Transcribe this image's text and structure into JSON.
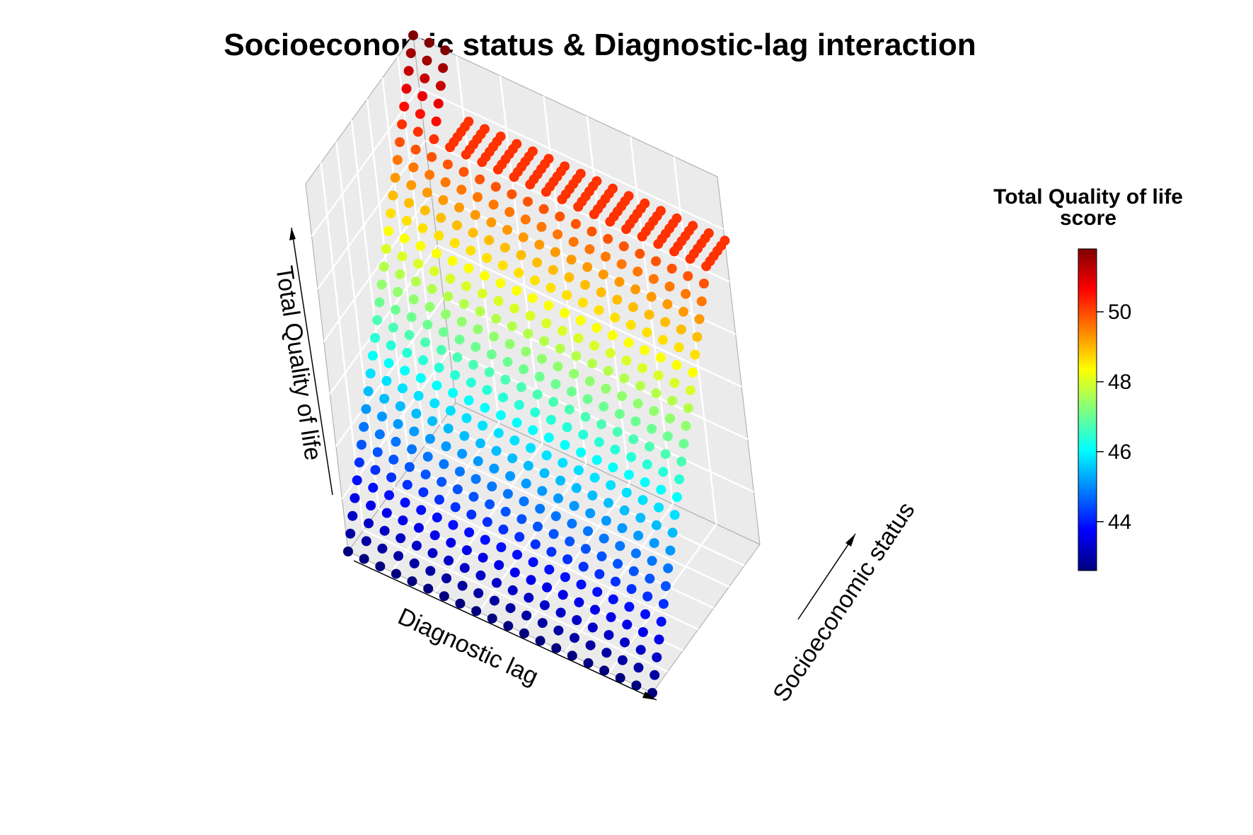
{
  "chart_data": {
    "type": "scatter",
    "subtype": "3d-surface-points",
    "title": "Socioeconomic status & Diagnostic-lag interaction",
    "xlabel": "Diagnostic lag",
    "ylabel": "Socioeconomic status",
    "zlabel": "Total Quality of life",
    "legend": {
      "title_line1": "Total Quality of life",
      "title_line2": "score",
      "placement": "right",
      "range": [
        42.6,
        51.8
      ],
      "ticks": [
        44,
        46,
        48,
        50
      ],
      "colormap": [
        "#00007F",
        "#0000FF",
        "#007FFF",
        "#00FFFF",
        "#7FFF7F",
        "#FFFF00",
        "#FF7F00",
        "#FF0000",
        "#7F0000"
      ]
    },
    "grid": true,
    "grid_points": {
      "diagnostic_lag": 20,
      "socioeconomic_status": 30
    },
    "surface": {
      "description": "Total quality of life rises linearly with socioeconomic status; at the lowest diagnostic lag the rise continues to a higher peak, otherwise it plateaus.",
      "z_min": 42.6,
      "z_max": 51.8,
      "plateau_value": 50.2,
      "steep_rows_at_low_lag": 3
    }
  }
}
